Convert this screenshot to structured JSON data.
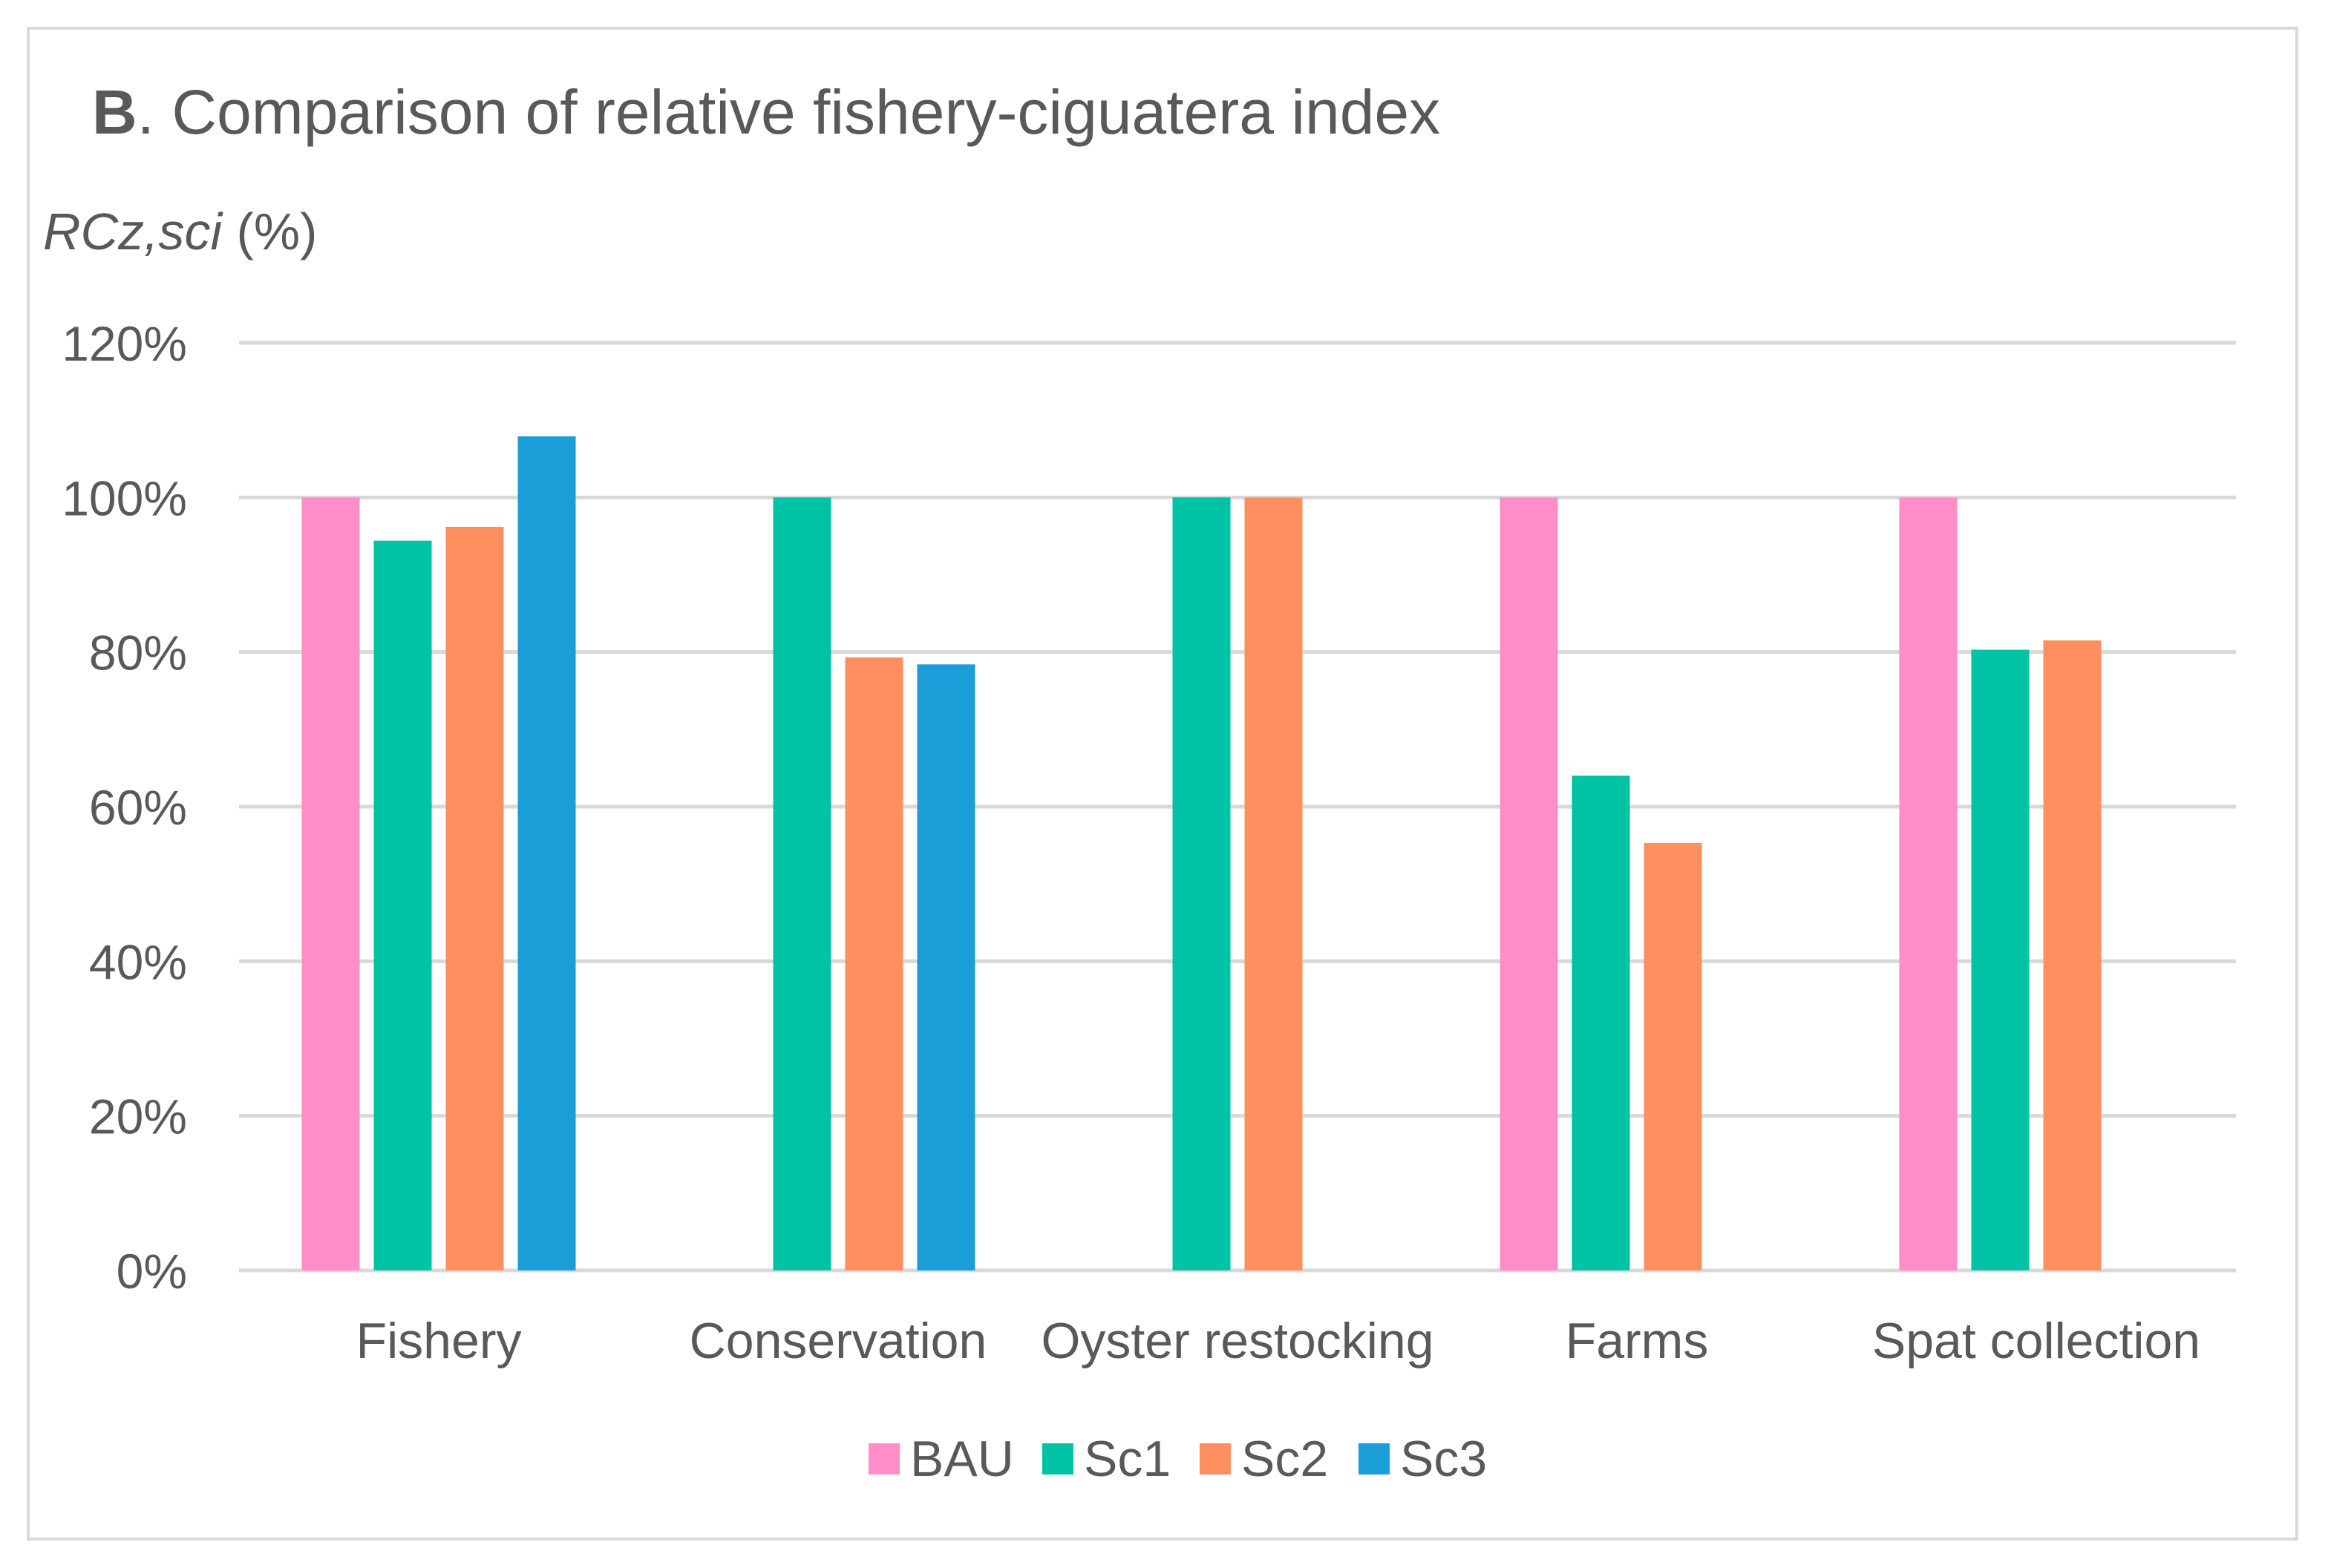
{
  "chart_data": {
    "type": "bar",
    "title_bold": "B",
    "title_rest": ". Comparison of relative fishery-ciguatera index",
    "ylabel": "RCz,sci",
    "ylabel_unit": " (%)",
    "ylim": [
      0,
      120
    ],
    "yticks": [
      "0%",
      "20%",
      "40%",
      "60%",
      "80%",
      "100%",
      "120%"
    ],
    "ytick_values": [
      0,
      20,
      40,
      60,
      80,
      100,
      120
    ],
    "categories": [
      "Fishery",
      "Conservation",
      "Oyster restocking",
      "Farms",
      "Spat collection"
    ],
    "series": [
      {
        "name": "BAU",
        "color": "#FF8DC8",
        "values": [
          100,
          null,
          null,
          100,
          100
        ]
      },
      {
        "name": "Sc1",
        "color": "#00C2A5",
        "values": [
          94.4,
          100,
          100,
          64,
          80.3
        ]
      },
      {
        "name": "Sc2",
        "color": "#FF8F5F",
        "values": [
          96.2,
          79.3,
          100,
          55.3,
          81.5
        ]
      },
      {
        "name": "Sc3",
        "color": "#1B9DD8",
        "values": [
          107.9,
          78.4,
          null,
          null,
          null
        ]
      }
    ],
    "legend_position": "bottom-center",
    "grid": true
  }
}
